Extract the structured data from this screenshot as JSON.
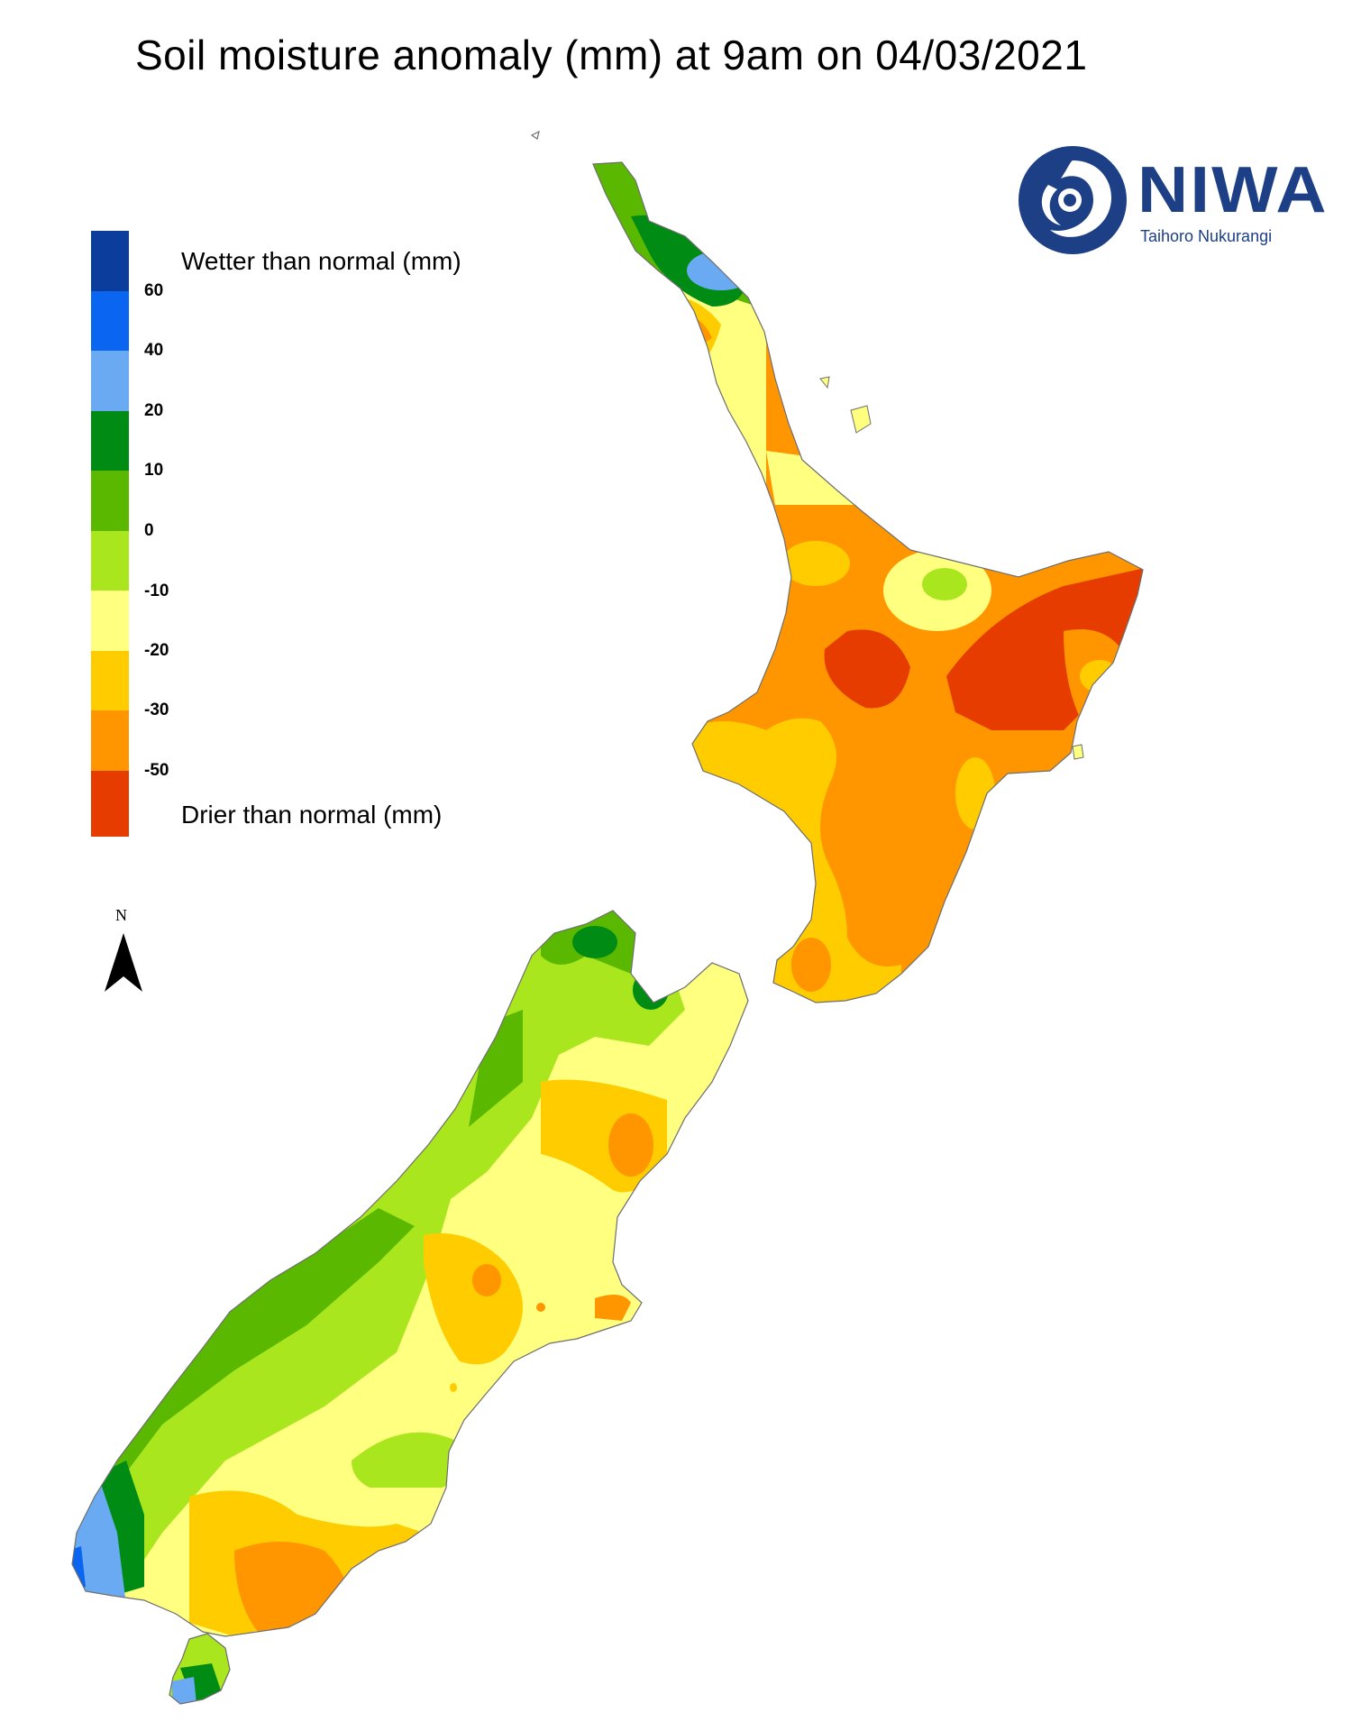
{
  "title": "Soil moisture anomaly (mm) at 9am on 04/03/2021",
  "legend": {
    "wetter_label": "Wetter than normal (mm)",
    "drier_label": "Drier than normal (mm)",
    "ticks": [
      "60",
      "40",
      "20",
      "10",
      "0",
      "-10",
      "-20",
      "-30",
      "-50"
    ],
    "colors": [
      "#0a3d9c",
      "#0a66f0",
      "#6aaaf2",
      "#008c14",
      "#5ab800",
      "#aae61e",
      "#ffff80",
      "#ffcc00",
      "#ff9600",
      "#e63c00"
    ]
  },
  "north_label": "N",
  "logo": {
    "name": "NIWA",
    "subtitle": "Taihoro Nukurangi",
    "color": "#1c3f85"
  },
  "map": {
    "regions": [
      "North Island",
      "South Island",
      "Stewart Island"
    ]
  }
}
